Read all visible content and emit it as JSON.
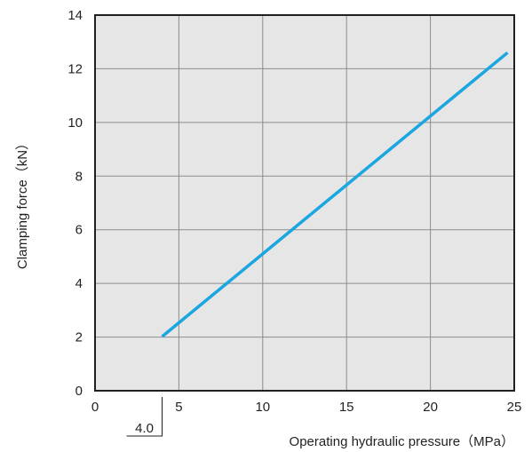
{
  "chart_data": {
    "type": "line",
    "xlabel": "Operating hydraulic pressure（MPa）",
    "ylabel": "Clamping force（kN）",
    "xlim": [
      0,
      25
    ],
    "ylim": [
      0,
      14
    ],
    "x_ticks": [
      "0",
      "5",
      "10",
      "15",
      "20",
      "25"
    ],
    "y_ticks": [
      "0",
      "2",
      "4",
      "6",
      "8",
      "10",
      "12",
      "14"
    ],
    "grid": true,
    "series": [
      {
        "x": [
          4.0,
          24.6
        ],
        "y": [
          2.02,
          12.6
        ]
      }
    ],
    "annotations": [
      {
        "text": "4.0",
        "x": 4.0
      }
    ],
    "colors": {
      "line": "#1aa6e0",
      "plot_background": "#e6e6e7",
      "grid": "#8c8c8c",
      "frame": "#231f20"
    }
  }
}
